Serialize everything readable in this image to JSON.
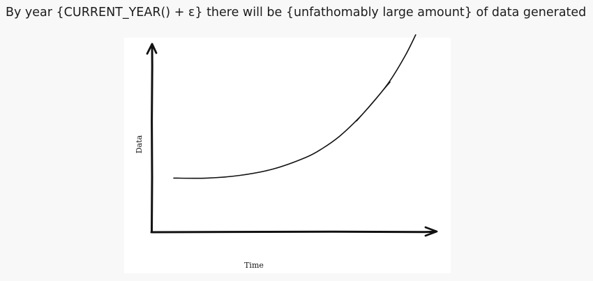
{
  "header": {
    "title": "By year {CURRENT_YEAR() + ε} there will be {unfathomably large amount} of data generated"
  },
  "chart_data": {
    "type": "line",
    "title": "",
    "xlabel": "Time",
    "ylabel": "Data",
    "axes": {
      "x_ticks": "none",
      "y_ticks": "none",
      "grid": false,
      "legend": "none",
      "style": "hand-drawn sketch"
    },
    "series": [
      {
        "shape": "exponential",
        "x": [
          0.0,
          0.1,
          0.2,
          0.3,
          0.4,
          0.45,
          0.5,
          0.55,
          0.6,
          0.65,
          0.7,
          0.73
        ],
        "y": [
          0.02,
          0.02,
          0.05,
          0.12,
          0.25,
          0.35,
          0.48,
          0.65,
          0.85,
          1.08,
          1.38,
          1.6
        ]
      }
    ],
    "colors": {
      "line": "#111111",
      "background": "#ffffff"
    }
  }
}
